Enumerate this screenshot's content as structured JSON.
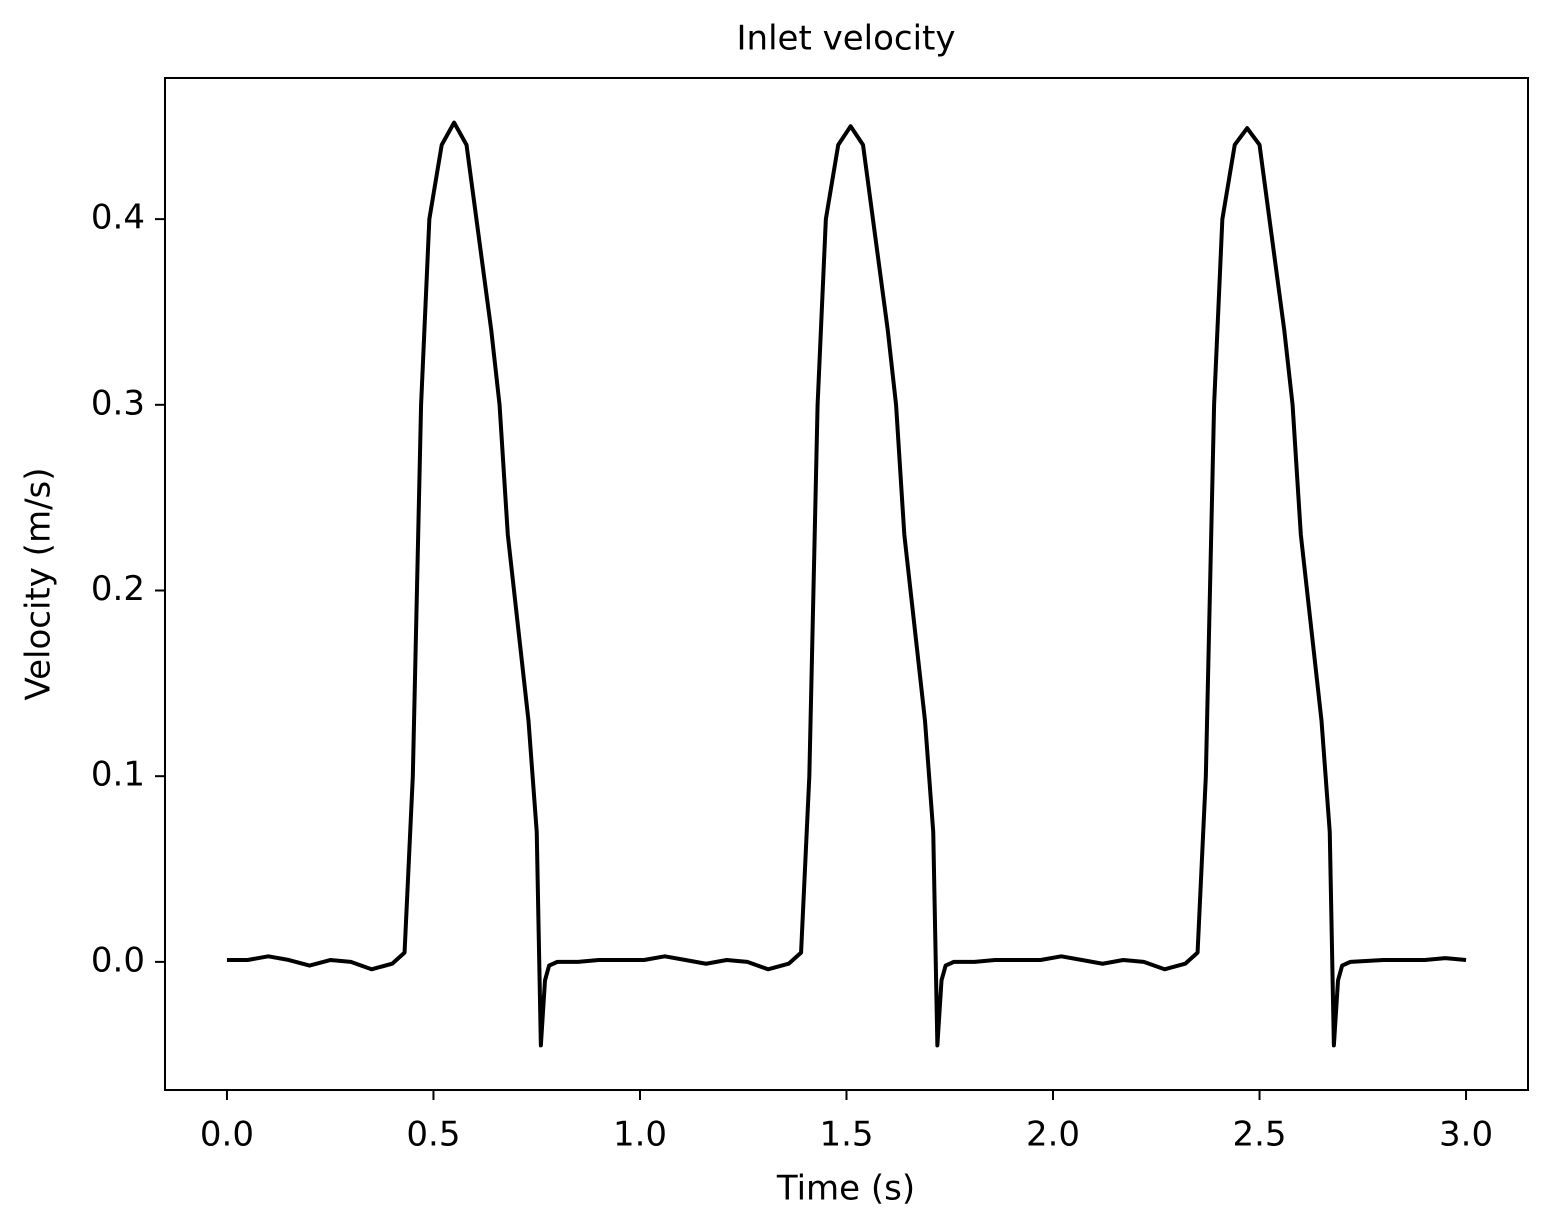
{
  "chart_data": {
    "type": "line",
    "title": "Inlet velocity",
    "x_label": "Time (s)",
    "y_label": "Velocity (m/s)",
    "xlim": [
      -0.15,
      3.15
    ],
    "ylim": [
      -0.069,
      0.476
    ],
    "xticks": [
      {
        "value": 0,
        "label": "0.0"
      },
      0.5,
      {
        "value": 1,
        "label": "1.0"
      },
      1.5,
      {
        "value": 2,
        "label": "2.0"
      },
      2.5,
      {
        "value": 3,
        "label": "3.0"
      }
    ],
    "yticks": [
      {
        "value": 0,
        "label": "0.0"
      },
      0.1,
      0.2,
      0.3,
      0.4
    ],
    "x": [
      0.0,
      0.05,
      0.1,
      0.15,
      0.2,
      0.25,
      0.3,
      0.35,
      0.4,
      0.43,
      0.45,
      0.47,
      0.49,
      0.52,
      0.55,
      0.58,
      0.61,
      0.64,
      0.66,
      0.68,
      0.71,
      0.73,
      0.75,
      0.76,
      0.77,
      0.78,
      0.8,
      0.85,
      0.9,
      0.96,
      1.01,
      1.06,
      1.11,
      1.16,
      1.21,
      1.26,
      1.31,
      1.36,
      1.39,
      1.41,
      1.43,
      1.45,
      1.48,
      1.51,
      1.54,
      1.57,
      1.6,
      1.62,
      1.64,
      1.67,
      1.69,
      1.71,
      1.72,
      1.73,
      1.74,
      1.76,
      1.81,
      1.86,
      1.92,
      1.97,
      2.02,
      2.07,
      2.12,
      2.17,
      2.22,
      2.27,
      2.32,
      2.35,
      2.37,
      2.39,
      2.41,
      2.44,
      2.47,
      2.5,
      2.53,
      2.56,
      2.58,
      2.6,
      2.63,
      2.65,
      2.67,
      2.68,
      2.69,
      2.7,
      2.72,
      2.8,
      2.9,
      2.95,
      3.0
    ],
    "series": [
      {
        "name": "Inlet velocity",
        "color": "#000000",
        "values": [
          0.001,
          0.001,
          0.003,
          0.001,
          -0.002,
          0.001,
          0.0,
          -0.004,
          -0.001,
          0.005,
          0.1,
          0.3,
          0.4,
          0.44,
          0.452,
          0.44,
          0.39,
          0.34,
          0.3,
          0.23,
          0.17,
          0.13,
          0.07,
          -0.045,
          -0.01,
          -0.002,
          0.0,
          0.0,
          0.001,
          0.001,
          0.001,
          0.003,
          0.001,
          -0.001,
          0.001,
          0.0,
          -0.004,
          -0.001,
          0.005,
          0.1,
          0.3,
          0.4,
          0.44,
          0.45,
          0.44,
          0.39,
          0.34,
          0.3,
          0.23,
          0.17,
          0.13,
          0.07,
          -0.045,
          -0.01,
          -0.002,
          0.0,
          0.0,
          0.001,
          0.001,
          0.001,
          0.003,
          0.001,
          -0.001,
          0.001,
          0.0,
          -0.004,
          -0.001,
          0.005,
          0.1,
          0.3,
          0.4,
          0.44,
          0.449,
          0.44,
          0.39,
          0.34,
          0.3,
          0.23,
          0.17,
          0.13,
          0.07,
          -0.045,
          -0.01,
          -0.002,
          0.0,
          0.001,
          0.001,
          0.002,
          0.001
        ]
      }
    ]
  }
}
